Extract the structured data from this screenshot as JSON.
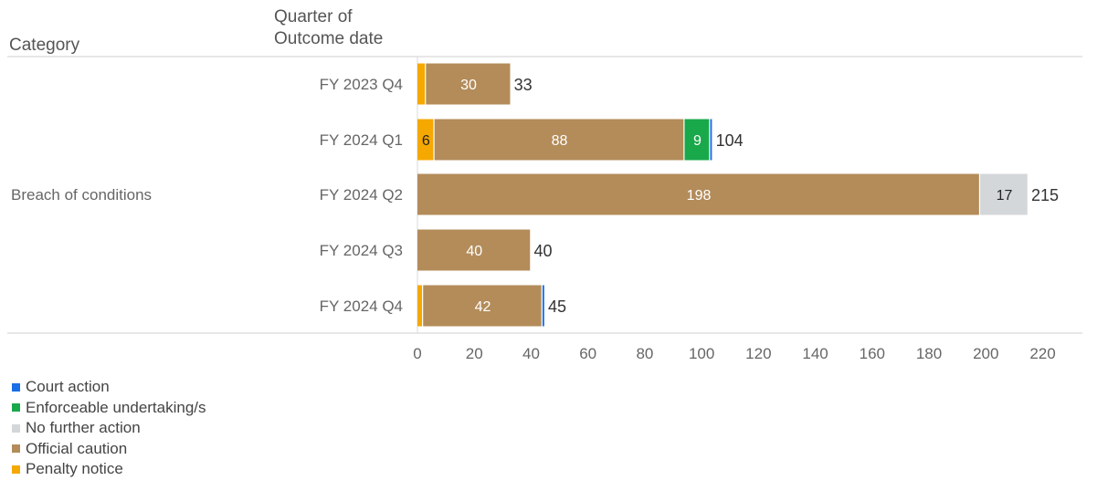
{
  "header": {
    "category": "Category",
    "quarter_line1": "Quarter of",
    "quarter_line2": "Outcome date"
  },
  "chart_data": {
    "type": "bar",
    "orientation": "horizontal",
    "stacked": true,
    "category_label": "Breach of conditions",
    "categories": [
      "FY 2023 Q4",
      "FY 2024 Q1",
      "FY 2024 Q2",
      "FY 2024 Q3",
      "FY 2024 Q4"
    ],
    "series": [
      {
        "name": "Penalty notice",
        "color": "#f5a800",
        "values": [
          3,
          6,
          0,
          0,
          2
        ]
      },
      {
        "name": "Official caution",
        "color": "#b38c5a",
        "values": [
          30,
          88,
          198,
          40,
          42
        ]
      },
      {
        "name": "No further action",
        "color": "#d4d7da",
        "values": [
          0,
          0,
          17,
          0,
          0
        ]
      },
      {
        "name": "Enforceable undertaking/s",
        "color": "#19a84a",
        "values": [
          0,
          9,
          0,
          0,
          0
        ]
      },
      {
        "name": "Court action",
        "color": "#1a6ee6",
        "values": [
          0,
          1,
          0,
          0,
          1
        ]
      }
    ],
    "segment_labels": [
      [
        null,
        "30",
        null,
        null,
        null
      ],
      [
        "6",
        "88",
        null,
        "9",
        null
      ],
      [
        null,
        "198",
        "17",
        null,
        null
      ],
      [
        null,
        "40",
        null,
        null,
        null
      ],
      [
        null,
        "42",
        null,
        null,
        null
      ]
    ],
    "totals": [
      "33",
      "104",
      "215",
      "40",
      "45"
    ],
    "xlim": [
      0,
      225
    ],
    "xticks": [
      "0",
      "20",
      "40",
      "60",
      "80",
      "100",
      "120",
      "140",
      "160",
      "180",
      "200",
      "220"
    ],
    "legend_position": "bottom-left"
  },
  "legend": [
    {
      "label": "Court action",
      "color": "#1a6ee6"
    },
    {
      "label": "Enforceable undertaking/s",
      "color": "#19a84a"
    },
    {
      "label": "No further action",
      "color": "#d4d7da"
    },
    {
      "label": "Official caution",
      "color": "#b38c5a"
    },
    {
      "label": "Penalty notice",
      "color": "#f5a800"
    }
  ]
}
